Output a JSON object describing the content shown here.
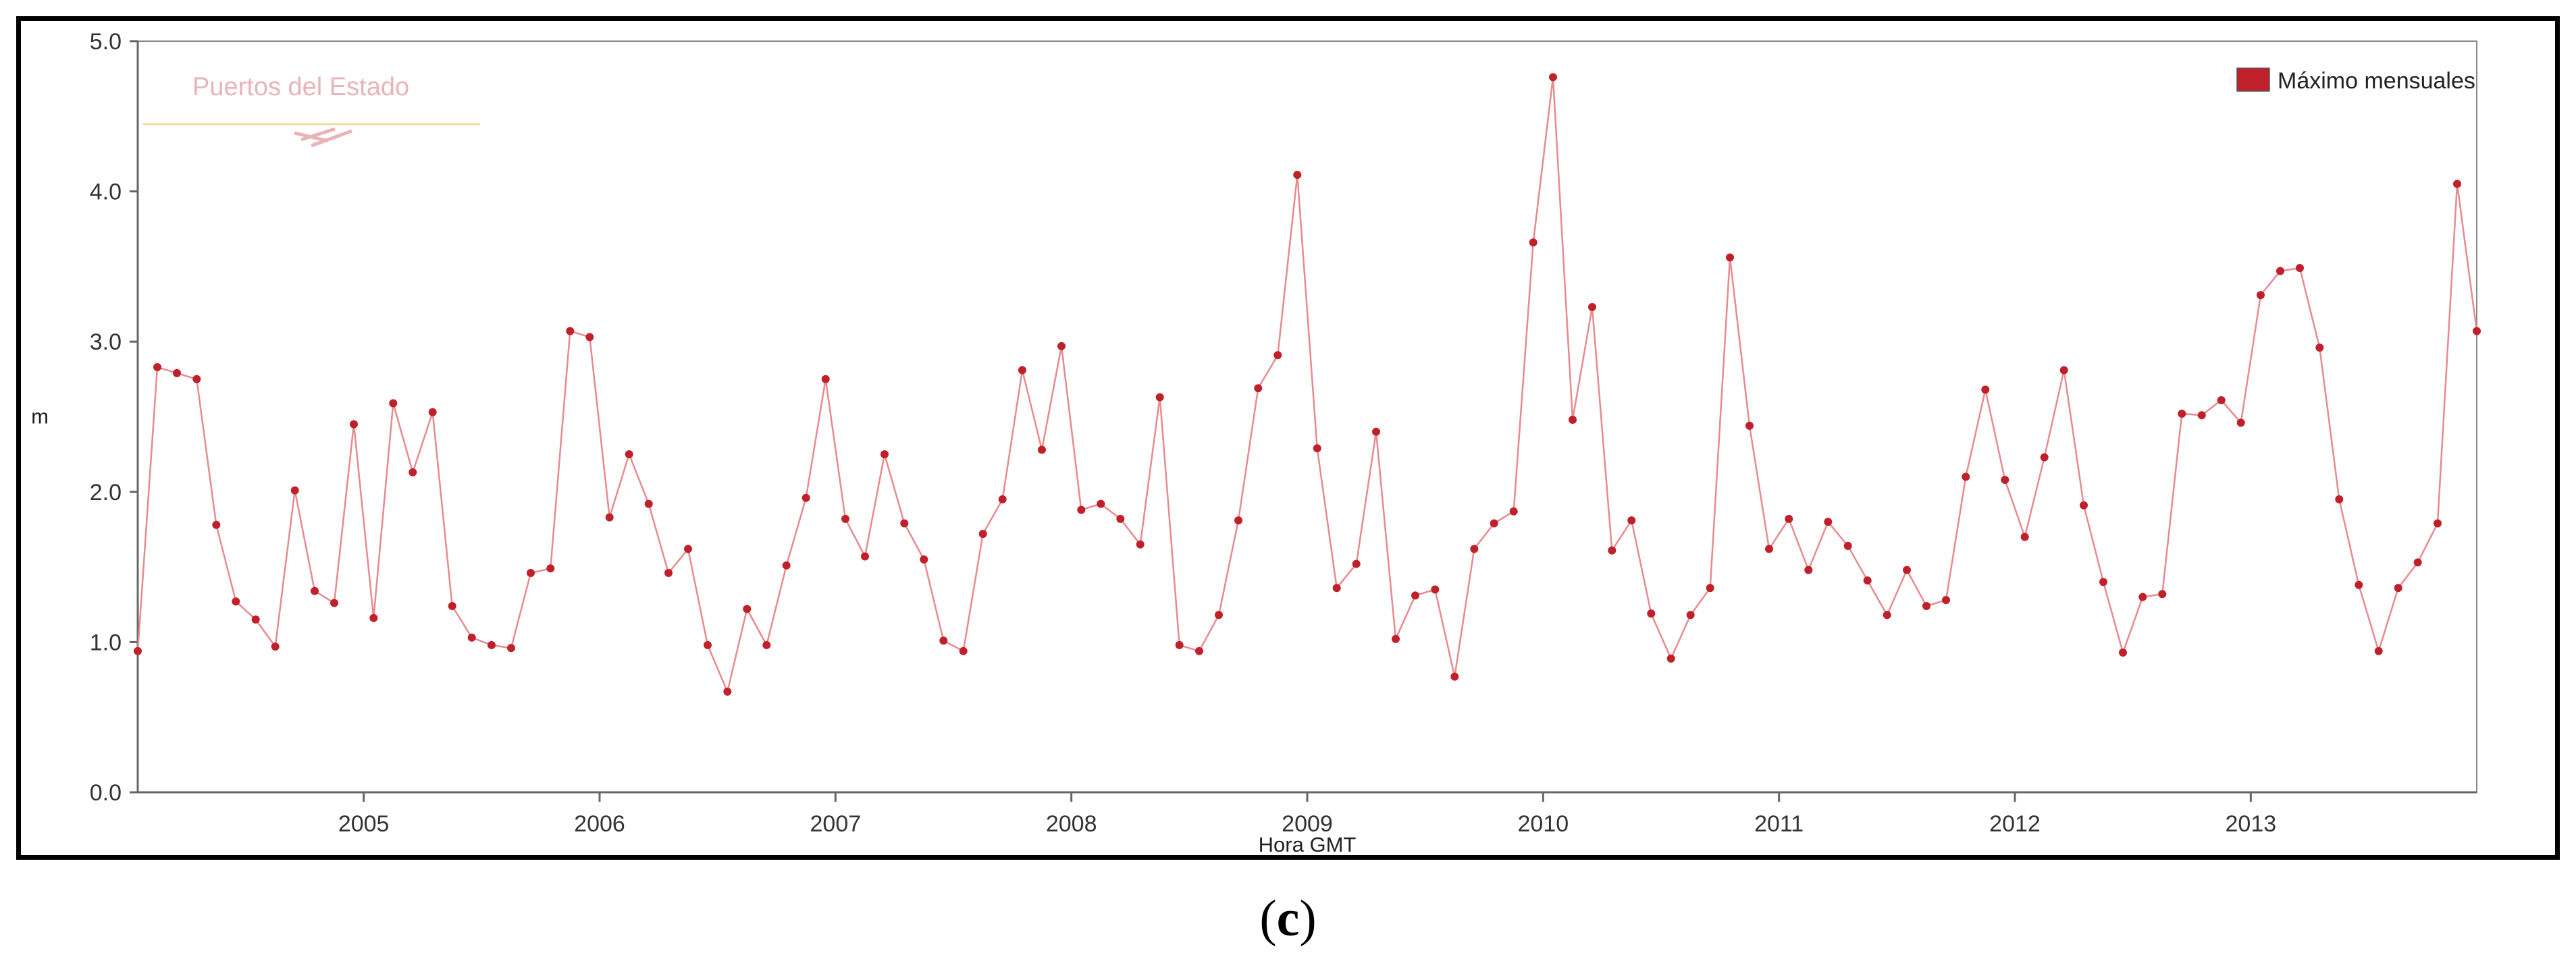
{
  "panel_label": {
    "open": "(",
    "letter": "c",
    "close": ")"
  },
  "watermark": {
    "text": "Puertos del Estado"
  },
  "colors": {
    "series": "#c0202a",
    "line": "#e88a90",
    "axis": "#666666"
  },
  "chart_data": {
    "type": "line",
    "title": "",
    "xlabel": "Hora GMT",
    "ylabel": "m",
    "ylim": [
      0,
      5
    ],
    "yticks": [
      "0.0",
      "1.0",
      "2.0",
      "3.0",
      "4.0",
      "5.0"
    ],
    "xlim": [
      2004.042,
      2013.958
    ],
    "xticks": [
      "2005",
      "2006",
      "2007",
      "2008",
      "2009",
      "2010",
      "2011",
      "2012",
      "2013"
    ],
    "grid": false,
    "legend": "top-right",
    "series": [
      {
        "name": "Máximo mensuales",
        "x": [
          2004.042,
          2004.125,
          2004.208,
          2004.292,
          2004.375,
          2004.458,
          2004.542,
          2004.625,
          2004.708,
          2004.792,
          2004.875,
          2004.958,
          2005.042,
          2005.125,
          2005.208,
          2005.292,
          2005.375,
          2005.458,
          2005.542,
          2005.625,
          2005.708,
          2005.792,
          2005.875,
          2005.958,
          2006.042,
          2006.125,
          2006.208,
          2006.292,
          2006.375,
          2006.458,
          2006.542,
          2006.625,
          2006.708,
          2006.792,
          2006.875,
          2006.958,
          2007.042,
          2007.125,
          2007.208,
          2007.292,
          2007.375,
          2007.458,
          2007.542,
          2007.625,
          2007.708,
          2007.792,
          2007.875,
          2007.958,
          2008.042,
          2008.125,
          2008.208,
          2008.292,
          2008.375,
          2008.458,
          2008.542,
          2008.625,
          2008.708,
          2008.792,
          2008.875,
          2008.958,
          2009.042,
          2009.125,
          2009.208,
          2009.292,
          2009.375,
          2009.458,
          2009.542,
          2009.625,
          2009.708,
          2009.792,
          2009.875,
          2009.958,
          2010.042,
          2010.125,
          2010.208,
          2010.292,
          2010.375,
          2010.458,
          2010.542,
          2010.625,
          2010.708,
          2010.792,
          2010.875,
          2010.958,
          2011.042,
          2011.125,
          2011.208,
          2011.292,
          2011.375,
          2011.458,
          2011.542,
          2011.625,
          2011.708,
          2011.792,
          2011.875,
          2011.958,
          2012.042,
          2012.125,
          2012.208,
          2012.292,
          2012.375,
          2012.458,
          2012.542,
          2012.625,
          2012.708,
          2012.792,
          2012.875,
          2012.958,
          2013.042,
          2013.125,
          2013.208,
          2013.292,
          2013.375,
          2013.458,
          2013.542,
          2013.625,
          2013.708,
          2013.792,
          2013.875,
          2013.958
        ],
        "values": [
          0.94,
          2.83,
          2.79,
          2.75,
          1.78,
          1.27,
          1.15,
          0.97,
          2.01,
          1.34,
          1.26,
          2.45,
          1.16,
          2.59,
          2.13,
          2.53,
          1.24,
          1.03,
          0.98,
          0.96,
          1.46,
          1.49,
          3.07,
          3.03,
          1.83,
          2.25,
          1.92,
          1.46,
          1.62,
          0.98,
          0.67,
          1.22,
          0.98,
          1.51,
          1.96,
          2.75,
          1.82,
          1.57,
          2.25,
          1.79,
          1.55,
          1.01,
          0.94,
          1.72,
          1.95,
          2.81,
          2.28,
          2.97,
          1.88,
          1.92,
          1.82,
          1.65,
          2.63,
          0.98,
          0.94,
          1.18,
          1.81,
          2.69,
          2.91,
          4.11,
          2.29,
          1.36,
          1.52,
          2.4,
          1.02,
          1.31,
          1.35,
          0.77,
          1.62,
          1.79,
          1.87,
          3.66,
          4.76,
          2.48,
          3.23,
          1.61,
          1.81,
          1.19,
          0.89,
          1.18,
          1.36,
          3.56,
          2.44,
          1.62,
          1.82,
          1.48,
          1.8,
          1.64,
          1.41,
          1.18,
          1.48,
          1.24,
          1.28,
          2.1,
          2.68,
          2.08,
          1.7,
          2.23,
          2.81,
          1.91,
          1.4,
          0.93,
          1.3,
          1.32,
          2.52,
          2.51,
          2.61,
          2.46,
          3.31,
          3.47,
          3.49,
          2.96,
          1.95,
          1.38,
          0.94,
          1.36,
          1.53,
          1.79,
          4.05,
          3.07
        ]
      }
    ]
  }
}
